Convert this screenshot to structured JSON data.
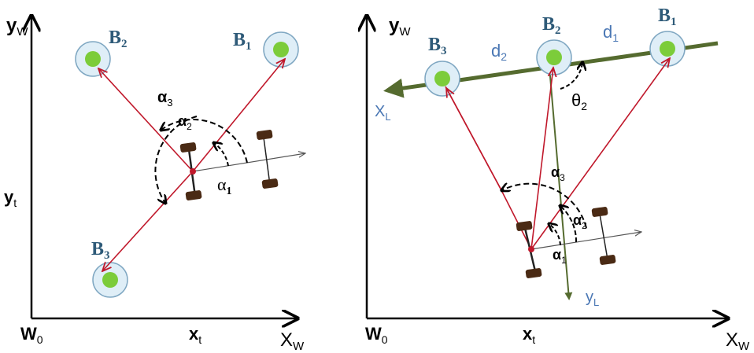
{
  "colors": {
    "axis": "#000000",
    "ray": "#c0182b",
    "beacon_outer_fill": "#dfeef7",
    "beacon_outer_stroke": "#7fa7c2",
    "beacon_inner": "#7ccc3a",
    "beacon_label": "#2e5a78",
    "local_axis": "#556b2f",
    "blue_label": "#4a77b4",
    "wheel": "#4a2a14"
  },
  "left_panel": {
    "y_axis": {
      "main": "y",
      "sub": "W"
    },
    "x_axis": {
      "main": "X",
      "sub": "W"
    },
    "origin": {
      "main": "W",
      "sub": "0"
    },
    "xt": {
      "main": "x",
      "sub": "t"
    },
    "yt": {
      "main": "y",
      "sub": "t"
    },
    "beacons": [
      {
        "main": "B",
        "sub": "1"
      },
      {
        "main": "B",
        "sub": "2"
      },
      {
        "main": "B",
        "sub": "3"
      }
    ],
    "angles": [
      {
        "main": "α",
        "sub": "1"
      },
      {
        "main": "α",
        "sub": "2"
      },
      {
        "main": "α",
        "sub": "3"
      }
    ]
  },
  "right_panel": {
    "y_axis": {
      "main": "y",
      "sub": "W"
    },
    "x_axis": {
      "main": "X",
      "sub": "W"
    },
    "origin": {
      "main": "W",
      "sub": "0"
    },
    "xt": {
      "main": "x",
      "sub": "t"
    },
    "beacons": [
      {
        "main": "B",
        "sub": "1"
      },
      {
        "main": "B",
        "sub": "2"
      },
      {
        "main": "B",
        "sub": "3"
      }
    ],
    "distances": [
      {
        "main": "d",
        "sub": "1"
      },
      {
        "main": "d",
        "sub": "2"
      }
    ],
    "local_x": {
      "main": "X",
      "sub": "L"
    },
    "local_y": {
      "main": "y",
      "sub": "L"
    },
    "theta": {
      "main": "θ",
      "sub": "2"
    },
    "angles": [
      {
        "main": "α",
        "sub": "1"
      },
      {
        "main": "α",
        "sub": "2"
      },
      {
        "main": "α",
        "sub": "3"
      }
    ]
  }
}
